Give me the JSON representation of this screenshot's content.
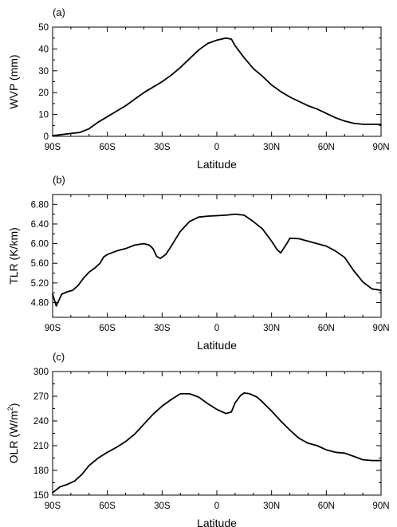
{
  "chart_data": [
    {
      "type": "line",
      "panel_label": "(a)",
      "xlabel": "Latitude",
      "ylabel": "WVP (mm)",
      "xlim": [
        -90,
        90
      ],
      "ylim": [
        0,
        50
      ],
      "xticks": [
        -90,
        -60,
        -30,
        0,
        30,
        60,
        90
      ],
      "xtick_labels": [
        "90S",
        "60S",
        "30S",
        "0",
        "30N",
        "60N",
        "90N"
      ],
      "yticks": [
        0,
        10,
        20,
        30,
        40,
        50
      ],
      "ytick_labels": [
        "0",
        "10",
        "20",
        "30",
        "40",
        "50"
      ],
      "series": [
        {
          "x": [
            -90,
            -85,
            -80,
            -75,
            -70,
            -65,
            -60,
            -55,
            -50,
            -45,
            -40,
            -35,
            -30,
            -25,
            -20,
            -15,
            -10,
            -5,
            0,
            5,
            8,
            10,
            15,
            20,
            25,
            30,
            35,
            40,
            45,
            50,
            55,
            60,
            65,
            70,
            75,
            80,
            85,
            90
          ],
          "y": [
            0.3,
            0.8,
            1.3,
            1.8,
            3.5,
            6.5,
            9,
            11.5,
            14,
            17,
            20,
            22.5,
            25,
            28,
            31.5,
            35.5,
            39.5,
            42.5,
            44,
            45,
            44.5,
            41.5,
            36,
            31,
            27.5,
            23.5,
            20.5,
            18,
            16,
            14,
            12.5,
            10.5,
            8.5,
            7,
            6,
            5.5,
            5.5,
            5.5
          ]
        }
      ]
    },
    {
      "type": "line",
      "panel_label": "(b)",
      "xlabel": "Latitude",
      "ylabel": "TLR (K/km)",
      "xlim": [
        -90,
        90
      ],
      "ylim": [
        4.5,
        7.0
      ],
      "xticks": [
        -90,
        -60,
        -30,
        0,
        30,
        60,
        90
      ],
      "xtick_labels": [
        "90S",
        "60S",
        "30S",
        "0",
        "30N",
        "60N",
        "90N"
      ],
      "yticks": [
        4.8,
        5.2,
        5.6,
        6.0,
        6.4,
        6.8
      ],
      "ytick_labels": [
        "4.80",
        "5.20",
        "5.60",
        "6.00",
        "6.40",
        "6.80"
      ],
      "series": [
        {
          "x": [
            -90,
            -88,
            -85,
            -82,
            -79,
            -76,
            -73,
            -70,
            -67,
            -64,
            -62,
            -60,
            -55,
            -50,
            -45,
            -40,
            -37,
            -35,
            -33,
            -31,
            -28,
            -25,
            -20,
            -15,
            -10,
            -5,
            0,
            5,
            10,
            15,
            20,
            25,
            30,
            33,
            35,
            38,
            40,
            45,
            50,
            55,
            60,
            65,
            70,
            75,
            80,
            85,
            90
          ],
          "y": [
            4.97,
            4.73,
            4.97,
            5.02,
            5.05,
            5.15,
            5.3,
            5.42,
            5.5,
            5.6,
            5.73,
            5.78,
            5.85,
            5.9,
            5.97,
            6.0,
            5.97,
            5.9,
            5.74,
            5.7,
            5.78,
            5.95,
            6.25,
            6.45,
            6.54,
            6.56,
            6.57,
            6.58,
            6.6,
            6.58,
            6.45,
            6.3,
            6.05,
            5.88,
            5.81,
            5.98,
            6.11,
            6.1,
            6.05,
            6.0,
            5.95,
            5.85,
            5.72,
            5.45,
            5.22,
            5.08,
            5.05
          ]
        }
      ]
    },
    {
      "type": "line",
      "panel_label": "(c)",
      "xlabel": "Latitude",
      "ylabel": "OLR (W/m",
      "ylabel_superscript": "2",
      "ylabel_suffix": ")",
      "xlim": [
        -90,
        90
      ],
      "ylim": [
        150,
        300
      ],
      "xticks": [
        -90,
        -60,
        -30,
        0,
        30,
        60,
        90
      ],
      "xtick_labels": [
        "90S",
        "60S",
        "30S",
        "0",
        "30N",
        "60N",
        "90N"
      ],
      "yticks": [
        150,
        180,
        210,
        240,
        270,
        300
      ],
      "ytick_labels": [
        "150",
        "180",
        "210",
        "240",
        "270",
        "300"
      ],
      "series": [
        {
          "x": [
            -90,
            -86,
            -82,
            -78,
            -74,
            -70,
            -65,
            -60,
            -55,
            -50,
            -45,
            -40,
            -35,
            -30,
            -25,
            -20,
            -15,
            -10,
            -5,
            0,
            5,
            8,
            10,
            13,
            15,
            18,
            22,
            25,
            30,
            35,
            40,
            45,
            50,
            55,
            60,
            65,
            70,
            75,
            80,
            85,
            90
          ],
          "y": [
            153,
            160,
            163,
            167,
            175,
            186,
            195,
            202,
            208,
            215,
            224,
            236,
            248,
            258,
            266,
            273,
            273,
            269,
            261,
            254,
            249,
            251,
            262,
            271,
            274,
            273,
            269,
            263,
            252,
            240,
            229,
            219,
            213,
            210,
            205,
            202,
            201,
            197,
            193,
            192,
            192
          ]
        }
      ]
    }
  ]
}
